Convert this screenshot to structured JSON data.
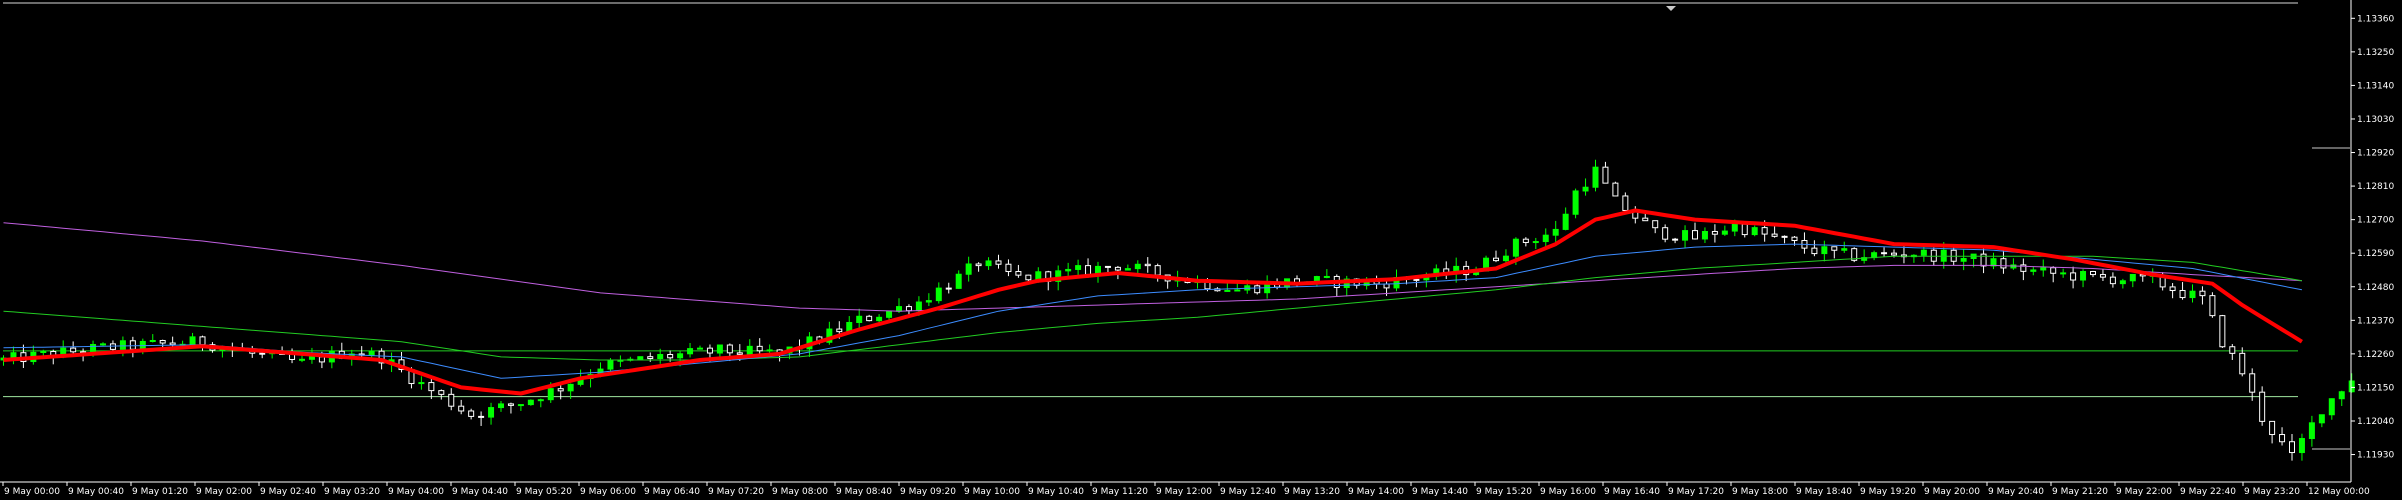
{
  "chart_data": {
    "type": "candlestick",
    "colors": {
      "background": "#000000",
      "axis": "#ffffff",
      "candle_bull": "#00ff00",
      "candle_bear": "#ffffff",
      "level_line_top": "#d8d8d8",
      "level_line_green": "#22cc22",
      "level_line_lower": "#a0e8a0",
      "ma_fast": "#ff0000",
      "ma_blue": "#3c8cff",
      "ma_green_long": "#22cc22",
      "ma_violet": "#c060e0"
    },
    "ylim": [
      1.1184,
      1.1342
    ],
    "ticks_y": [
      "1.13360",
      "1.13250",
      "1.13140",
      "1.13030",
      "1.12920",
      "1.12810",
      "1.12700",
      "1.12590",
      "1.12480",
      "1.12370",
      "1.12260",
      "1.12150",
      "1.12040",
      "1.11930"
    ],
    "ticks_x": [
      "9 May 00:00",
      "9 May 00:40",
      "9 May 01:20",
      "9 May 02:00",
      "9 May 02:40",
      "9 May 03:20",
      "9 May 04:00",
      "9 May 04:40",
      "9 May 05:20",
      "9 May 06:00",
      "9 May 06:40",
      "9 May 07:20",
      "9 May 08:00",
      "9 May 08:40",
      "9 May 09:20",
      "9 May 10:00",
      "9 May 10:40",
      "9 May 11:20",
      "9 May 12:00",
      "9 May 12:40",
      "9 May 13:20",
      "9 May 14:00",
      "9 May 14:40",
      "9 May 15:20",
      "9 May 16:00",
      "9 May 16:40",
      "9 May 17:20",
      "9 May 18:00",
      "9 May 18:40",
      "9 May 19:20",
      "9 May 20:00",
      "9 May 20:40",
      "9 May 21:20",
      "9 May 22:00",
      "9 May 22:40",
      "9 May 23:20",
      "12 May 00:00"
    ],
    "levels": [
      {
        "value": 1.1341,
        "color": "level_line_top"
      },
      {
        "value": 1.1227,
        "color": "level_line_green"
      },
      {
        "value": 1.1212,
        "color": "level_line_lower"
      }
    ],
    "price_key_points": [
      [
        0,
        1.1224
      ],
      [
        10,
        1.1228
      ],
      [
        20,
        1.123
      ],
      [
        25,
        1.1226
      ],
      [
        30,
        1.1223
      ],
      [
        35,
        1.1227
      ],
      [
        38,
        1.1225
      ],
      [
        42,
        1.1216
      ],
      [
        47,
        1.1206
      ],
      [
        52,
        1.121
      ],
      [
        56,
        1.1215
      ],
      [
        60,
        1.1222
      ],
      [
        66,
        1.1225
      ],
      [
        72,
        1.1227
      ],
      [
        78,
        1.1226
      ],
      [
        82,
        1.1231
      ],
      [
        86,
        1.1237
      ],
      [
        92,
        1.1243
      ],
      [
        96,
        1.1251
      ],
      [
        98,
        1.1256
      ],
      [
        102,
        1.1251
      ],
      [
        106,
        1.1252
      ],
      [
        112,
        1.1255
      ],
      [
        118,
        1.1251
      ],
      [
        124,
        1.1247
      ],
      [
        130,
        1.125
      ],
      [
        138,
        1.1249
      ],
      [
        142,
        1.1251
      ],
      [
        148,
        1.1254
      ],
      [
        152,
        1.1262
      ],
      [
        156,
        1.1266
      ],
      [
        158,
        1.1279
      ],
      [
        160,
        1.1286
      ],
      [
        162,
        1.1276
      ],
      [
        166,
        1.1266
      ],
      [
        170,
        1.1264
      ],
      [
        174,
        1.1268
      ],
      [
        178,
        1.1264
      ],
      [
        182,
        1.126
      ],
      [
        186,
        1.1258
      ],
      [
        192,
        1.1259
      ],
      [
        198,
        1.1257
      ],
      [
        204,
        1.1253
      ],
      [
        210,
        1.1251
      ],
      [
        216,
        1.125
      ],
      [
        219,
        1.1246
      ],
      [
        221,
        1.1244
      ],
      [
        223,
        1.123
      ],
      [
        225,
        1.122
      ],
      [
        227,
        1.1205
      ],
      [
        230,
        1.1192
      ],
      [
        233,
        1.1208
      ],
      [
        236,
        1.1218
      ]
    ],
    "ma_fast_key_points": [
      [
        0,
        1.1224
      ],
      [
        20,
        1.12285
      ],
      [
        30,
        1.1226
      ],
      [
        38,
        1.1224
      ],
      [
        46,
        1.1215
      ],
      [
        52,
        1.1213
      ],
      [
        58,
        1.1218
      ],
      [
        70,
        1.1224
      ],
      [
        78,
        1.1226
      ],
      [
        86,
        1.1234
      ],
      [
        94,
        1.1241
      ],
      [
        100,
        1.1247
      ],
      [
        104,
        1.125
      ],
      [
        112,
        1.12525
      ],
      [
        120,
        1.125
      ],
      [
        130,
        1.1249
      ],
      [
        140,
        1.12505
      ],
      [
        150,
        1.1254
      ],
      [
        156,
        1.1262
      ],
      [
        160,
        1.127
      ],
      [
        164,
        1.1273
      ],
      [
        170,
        1.127
      ],
      [
        180,
        1.1268
      ],
      [
        190,
        1.1262
      ],
      [
        200,
        1.1261
      ],
      [
        208,
        1.1257
      ],
      [
        216,
        1.1252
      ],
      [
        222,
        1.1249
      ],
      [
        225,
        1.1242
      ],
      [
        228,
        1.1236
      ],
      [
        231,
        1.123
      ]
    ],
    "ma_blue_key_points": [
      [
        0,
        1.1228
      ],
      [
        20,
        1.1229
      ],
      [
        30,
        1.12265
      ],
      [
        40,
        1.1225
      ],
      [
        50,
        1.1218
      ],
      [
        60,
        1.122
      ],
      [
        70,
        1.1223
      ],
      [
        80,
        1.1226
      ],
      [
        90,
        1.1232
      ],
      [
        100,
        1.124
      ],
      [
        110,
        1.1245
      ],
      [
        120,
        1.1247
      ],
      [
        130,
        1.1248
      ],
      [
        140,
        1.1249
      ],
      [
        150,
        1.1251
      ],
      [
        160,
        1.1258
      ],
      [
        170,
        1.1261
      ],
      [
        180,
        1.1262
      ],
      [
        190,
        1.1261
      ],
      [
        200,
        1.126
      ],
      [
        210,
        1.1257
      ],
      [
        220,
        1.1254
      ],
      [
        231,
        1.1247
      ]
    ],
    "ma_green_long_key_points": [
      [
        0,
        1.124
      ],
      [
        20,
        1.1235
      ],
      [
        40,
        1.123
      ],
      [
        50,
        1.1225
      ],
      [
        60,
        1.1224
      ],
      [
        70,
        1.1224
      ],
      [
        80,
        1.1225
      ],
      [
        90,
        1.1229
      ],
      [
        100,
        1.1233
      ],
      [
        110,
        1.1236
      ],
      [
        120,
        1.1238
      ],
      [
        130,
        1.1241
      ],
      [
        140,
        1.1244
      ],
      [
        150,
        1.1247
      ],
      [
        160,
        1.1251
      ],
      [
        170,
        1.1254
      ],
      [
        180,
        1.1256
      ],
      [
        190,
        1.1258
      ],
      [
        200,
        1.1258
      ],
      [
        210,
        1.1258
      ],
      [
        220,
        1.1256
      ],
      [
        231,
        1.125
      ]
    ],
    "ma_violet_key_points": [
      [
        0,
        1.1269
      ],
      [
        20,
        1.1263
      ],
      [
        40,
        1.1255
      ],
      [
        60,
        1.1246
      ],
      [
        80,
        1.1241
      ],
      [
        90,
        1.124
      ],
      [
        100,
        1.1241
      ],
      [
        110,
        1.1242
      ],
      [
        120,
        1.1243
      ],
      [
        130,
        1.1244
      ],
      [
        140,
        1.1246
      ],
      [
        150,
        1.1248
      ],
      [
        160,
        1.125
      ],
      [
        170,
        1.1252
      ],
      [
        180,
        1.1254
      ],
      [
        190,
        1.1255
      ],
      [
        200,
        1.1255
      ],
      [
        210,
        1.1254
      ],
      [
        220,
        1.1252
      ],
      [
        231,
        1.125
      ]
    ],
    "bar_count": 237
  }
}
